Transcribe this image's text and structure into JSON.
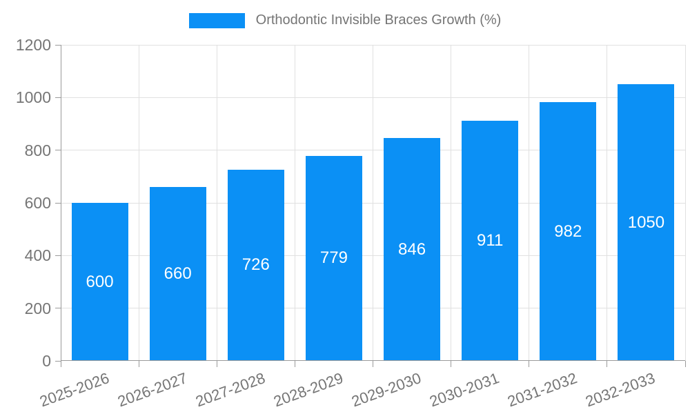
{
  "legend": {
    "label": "Orthodontic Invisible Braces Growth (%)"
  },
  "colors": {
    "bar": "#0b90f5",
    "axis_line": "#9a9a9a",
    "gridline": "#e0e0e0",
    "tick_text": "#757575",
    "value_text": "#ffffff",
    "background": "#ffffff"
  },
  "chart_data": {
    "type": "bar",
    "title": "Orthodontic Invisible Braces Growth (%)",
    "categories": [
      "2025-2026",
      "2026-2027",
      "2027-2028",
      "2028-2029",
      "2029-2030",
      "2030-2031",
      "2031-2032",
      "2032-2033"
    ],
    "values": [
      600,
      660,
      726,
      779,
      846,
      911,
      982,
      1050
    ],
    "xlabel": "",
    "ylabel": "",
    "ylim": [
      0,
      1200
    ],
    "yticks": [
      0,
      200,
      400,
      600,
      800,
      1000,
      1200
    ],
    "grid": true,
    "legend_position": "top-center",
    "value_labels": "inside-middle",
    "x_tick_rotation_deg": -20
  }
}
